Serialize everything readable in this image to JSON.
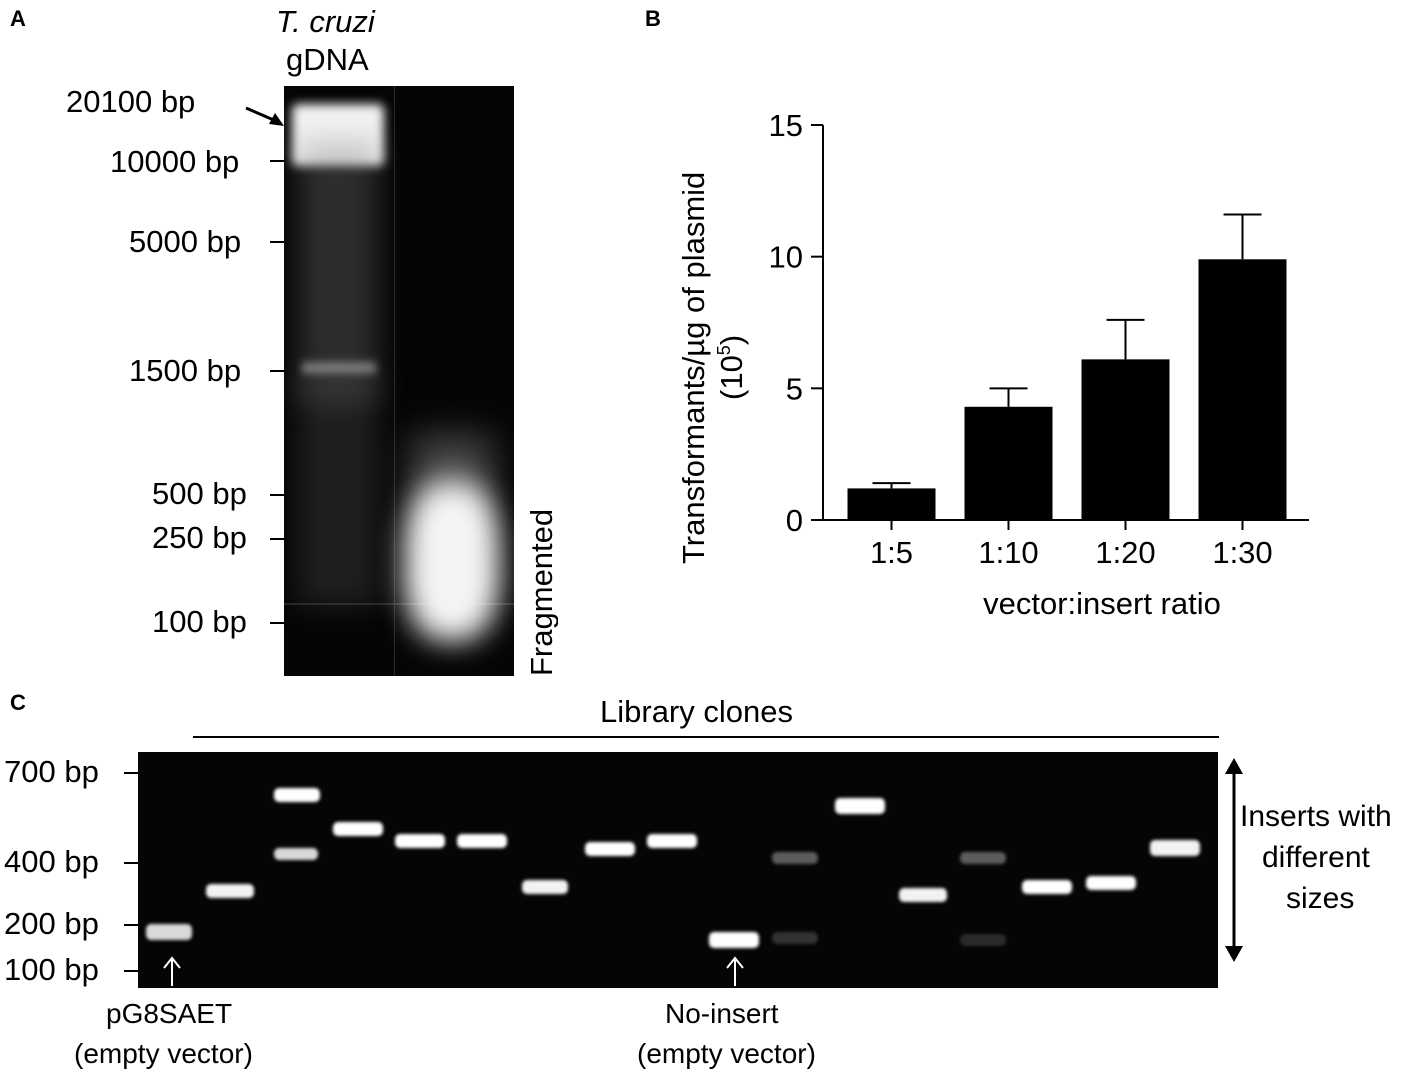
{
  "panels": {
    "a": "A",
    "b": "B",
    "c": "C"
  },
  "panel_a": {
    "organism": "T. cruzi",
    "sample": "gDNA",
    "ladder": [
      "20100 bp",
      "10000 bp",
      "5000 bp",
      "1500 bp",
      "500 bp",
      "250 bp",
      "100 bp"
    ],
    "lane2_label": "Fragmented"
  },
  "chart_data": {
    "type": "bar",
    "categories": [
      "1:5",
      "1:10",
      "1:20",
      "1:30"
    ],
    "values": [
      1.2,
      4.3,
      6.1,
      9.9
    ],
    "errors": [
      0.2,
      0.7,
      1.5,
      1.7
    ],
    "ylabel_line1": "Transformants/µg of plasmid",
    "ylabel_line2_base": "(10",
    "ylabel_line2_sup": "5",
    "ylabel_line2_end": ")",
    "xlabel": "vector:insert ratio",
    "ylim": [
      0,
      15
    ],
    "yticks": [
      0,
      5,
      10,
      15
    ],
    "bar_color": "#000000"
  },
  "panel_c": {
    "header": "Library clones",
    "ladder": [
      "700 bp",
      "400 bp",
      "200 bp",
      "100 bp"
    ],
    "left_note_line1": "pG8SAET",
    "left_note_line2": "(empty vector)",
    "mid_note_line1": "No-insert",
    "mid_note_line2": "(empty vector)",
    "right_note_line1": "Inserts with",
    "right_note_line2": "different",
    "right_note_line3": "sizes"
  }
}
